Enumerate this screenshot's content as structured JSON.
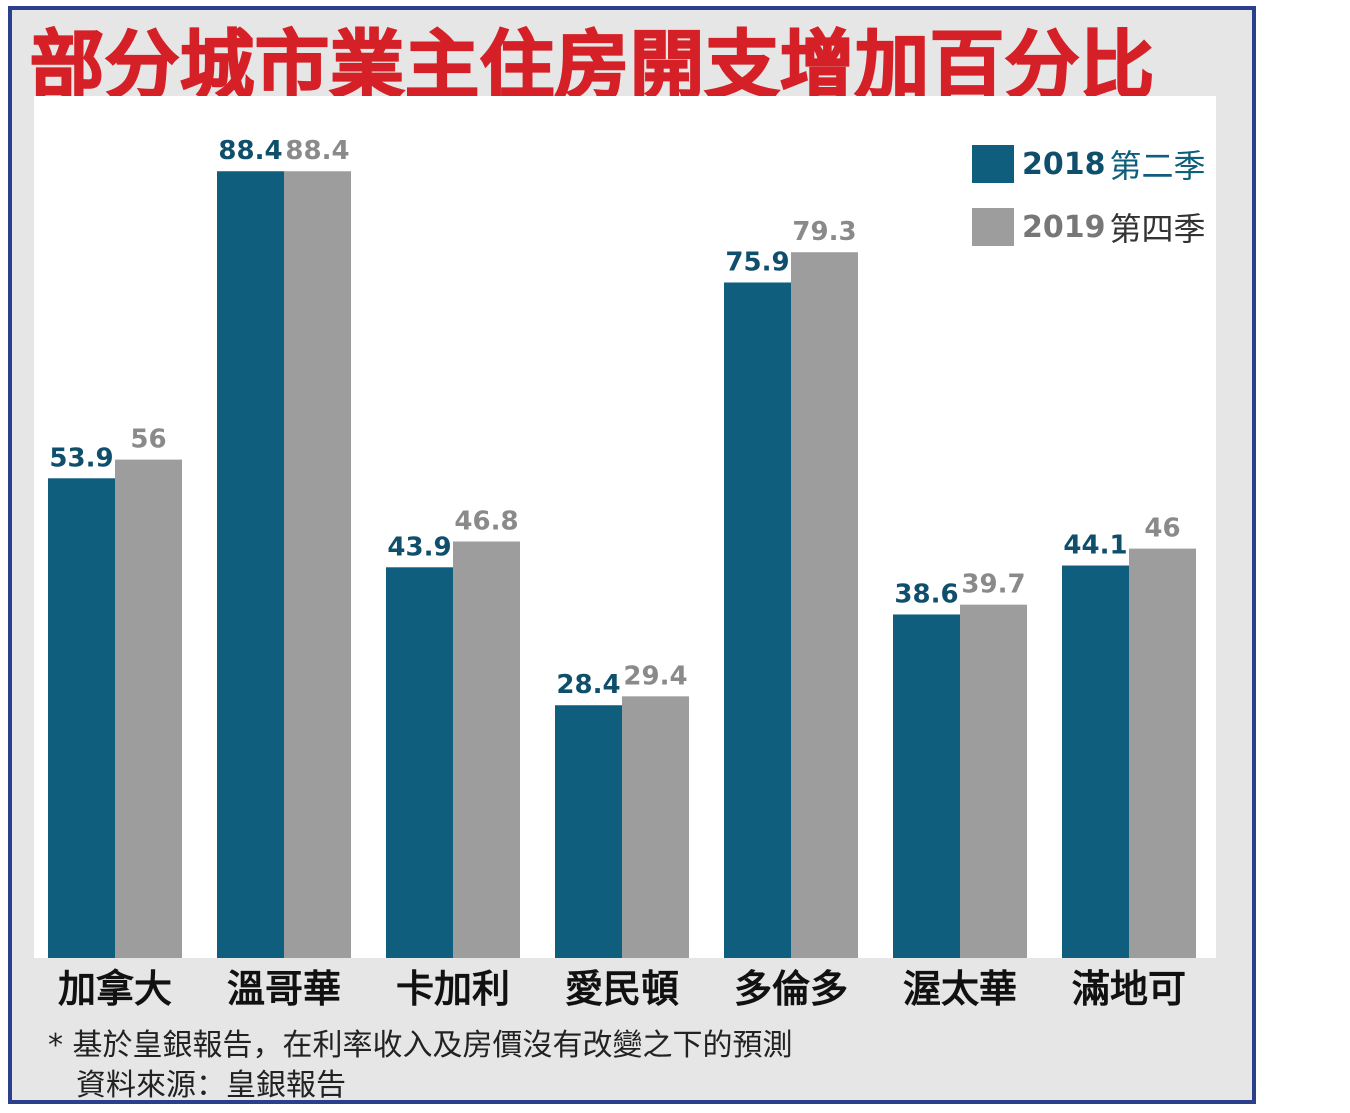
{
  "title": "部分城市業主住房開支增加百分比",
  "colors": {
    "series_2018": "#0f5e7e",
    "series_2019": "#9d9d9d",
    "title": "#d42026",
    "frame": "#2b3f8c"
  },
  "legend": [
    {
      "year": "2018",
      "quarter": "第二季"
    },
    {
      "year": "2019",
      "quarter": "第四季"
    }
  ],
  "chart_data": {
    "type": "bar",
    "title": "部分城市業主住房開支增加百分比",
    "categories": [
      "加拿大",
      "溫哥華",
      "卡加利",
      "愛民頓",
      "多倫多",
      "渥太華",
      "滿地可"
    ],
    "series": [
      {
        "name": "2018 第二季",
        "values": [
          53.9,
          88.4,
          43.9,
          28.4,
          75.9,
          38.6,
          44.1
        ]
      },
      {
        "name": "2019 第四季",
        "values": [
          56,
          88.4,
          46.8,
          29.4,
          79.3,
          39.7,
          46
        ]
      }
    ],
    "value_labels": [
      [
        "53.9",
        "88.4",
        "43.9",
        "28.4",
        "75.9",
        "38.6",
        "44.1"
      ],
      [
        "56",
        "88.4",
        "46.8",
        "29.4",
        "79.3",
        "39.7",
        "46"
      ]
    ],
    "ylim": [
      0,
      100
    ],
    "grid": false,
    "legend_position": "top-right"
  },
  "notes": {
    "line1": "* 基於皇銀報告，在利率收入及房價沒有改變之下的預測",
    "line2": "資料來源：皇銀報告"
  }
}
